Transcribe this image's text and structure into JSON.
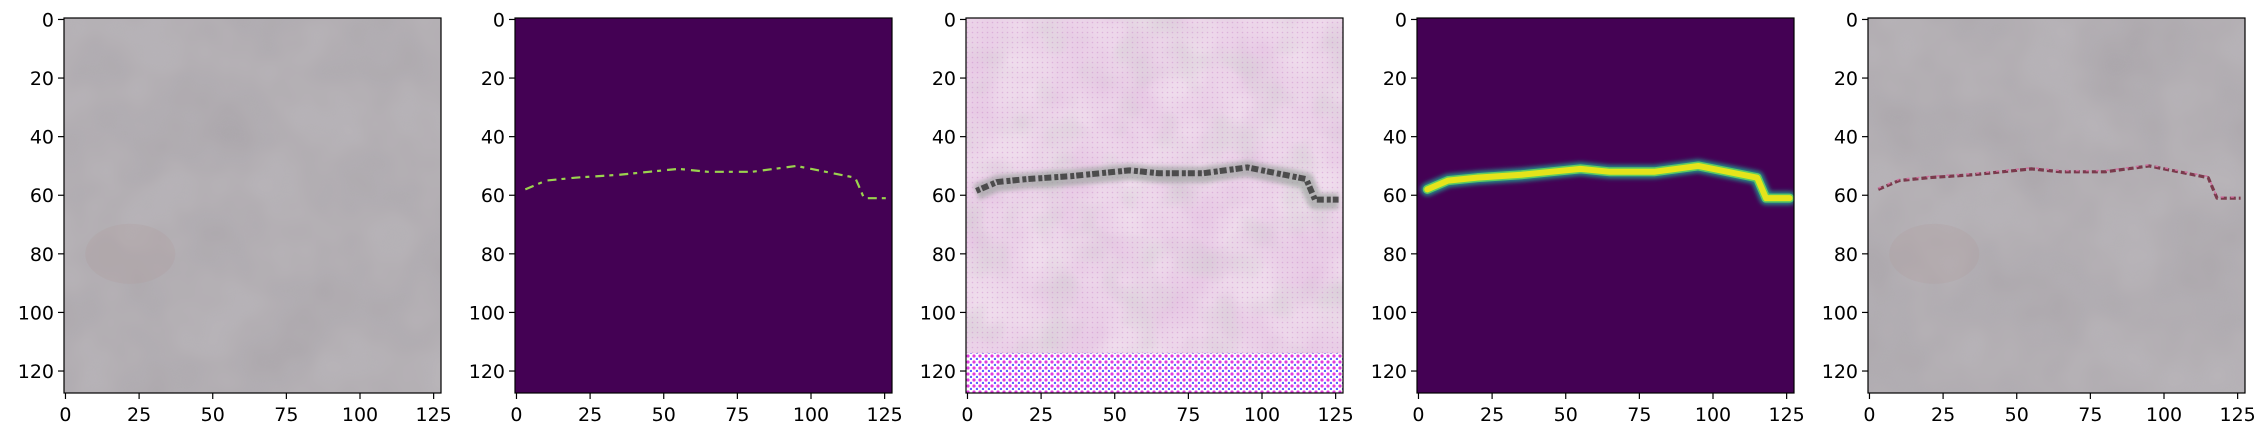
{
  "figure": {
    "panel_count": 5,
    "axis_range": [
      0,
      128
    ],
    "x_ticks": [
      "0",
      "25",
      "50",
      "75",
      "100",
      "125"
    ],
    "y_ticks": [
      "0",
      "20",
      "40",
      "60",
      "80",
      "100",
      "120"
    ],
    "panels": [
      {
        "name": "input-concrete-photo",
        "content": "photo",
        "background": "#a8a3a8"
      },
      {
        "name": "ground-truth-mask",
        "content": "thin-mask",
        "background": "#440154",
        "mark_color": "#9bd34e"
      },
      {
        "name": "generated-texture",
        "content": "generated",
        "background": "#efdcec"
      },
      {
        "name": "predicted-mask",
        "content": "thick-mask",
        "background": "#440154",
        "mark_color": "#e5e41b"
      },
      {
        "name": "overlay-result",
        "content": "overlay",
        "background": "#a8a3a8"
      }
    ],
    "crack_path": [
      [
        3,
        58
      ],
      [
        10,
        55
      ],
      [
        20,
        54
      ],
      [
        35,
        53
      ],
      [
        45,
        52
      ],
      [
        55,
        51
      ],
      [
        65,
        52
      ],
      [
        80,
        52
      ],
      [
        95,
        50
      ],
      [
        105,
        52
      ],
      [
        115,
        54
      ],
      [
        118,
        61
      ],
      [
        126,
        61
      ]
    ]
  }
}
